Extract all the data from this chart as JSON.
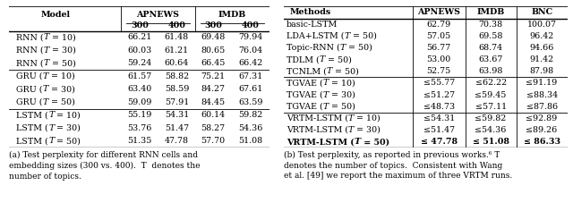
{
  "left_table": {
    "rows": [
      [
        "RNN (T = 10)",
        "66.21",
        "61.48",
        "69.48",
        "79.94"
      ],
      [
        "RNN (T = 30)",
        "60.03",
        "61.21",
        "80.65",
        "76.04"
      ],
      [
        "RNN (T = 50)",
        "59.24",
        "60.64",
        "66.45",
        "66.42"
      ],
      [
        "GRU (T = 10)",
        "61.57",
        "58.82",
        "75.21",
        "67.31"
      ],
      [
        "GRU (T = 30)",
        "63.40",
        "58.59",
        "84.27",
        "67.61"
      ],
      [
        "GRU (T = 50)",
        "59.09",
        "57.91",
        "84.45",
        "63.59"
      ],
      [
        "LSTM (T = 10)",
        "55.19",
        "54.31",
        "60.14",
        "59.82"
      ],
      [
        "LSTM (T = 30)",
        "53.76",
        "51.47",
        "58.27",
        "54.36"
      ],
      [
        "LSTM (T = 50)",
        "51.35",
        "47.78",
        "57.70",
        "51.08"
      ]
    ],
    "group_separators": [
      3,
      6
    ],
    "caption_line1": "(a) Test perplexity for different RNN cells and",
    "caption_line2": "embedding sizes (300 vs. 400).  T  denotes the",
    "caption_line3": "number of topics."
  },
  "right_table": {
    "rows": [
      [
        "basic-LSTM",
        "62.79",
        "70.38",
        "100.07",
        false,
        false
      ],
      [
        "LDA+LSTM (T = 50)",
        "57.05",
        "69.58",
        "96.42",
        false,
        false
      ],
      [
        "Topic-RNN (T = 50)",
        "56.77",
        "68.74",
        "94.66",
        false,
        false
      ],
      [
        "TDLM (T = 50)",
        "53.00",
        "63.67",
        "91.42",
        false,
        false
      ],
      [
        "TCNLM (T = 50)",
        "52.75",
        "63.98",
        "87.98",
        false,
        false
      ],
      [
        "TGVAE (T = 10)",
        "≤55.77",
        "≤62.22",
        "≤91.19",
        false,
        false
      ],
      [
        "TGVAE (T = 30)",
        "≤51.27",
        "≤59.45",
        "≤88.34",
        false,
        false
      ],
      [
        "TGVAE (T = 50)",
        "≤48.73",
        "≤57.11",
        "≤87.86",
        false,
        false
      ],
      [
        "VRTM-LSTM (T = 10)",
        "≤54.31",
        "≤59.82",
        "≤92.89",
        false,
        false
      ],
      [
        "VRTM-LSTM (T = 30)",
        "≤51.47",
        "≤54.36",
        "≤89.26",
        false,
        false
      ],
      [
        "VRTM-LSTM (T = 50)",
        "≤ 47.78",
        "≤ 51.08",
        "≤ 86.33",
        true,
        true
      ]
    ],
    "group_separators": [
      5,
      8
    ],
    "caption_line1": "(b) Test perplexity, as reported in previous works.⁶ T",
    "caption_line2": "denotes the number of topics.  Consistent with Wang",
    "caption_line3": "et al. [49] we report the maximum of three VRTM runs."
  },
  "fontsize": 6.8,
  "caption_fontsize": 6.5
}
